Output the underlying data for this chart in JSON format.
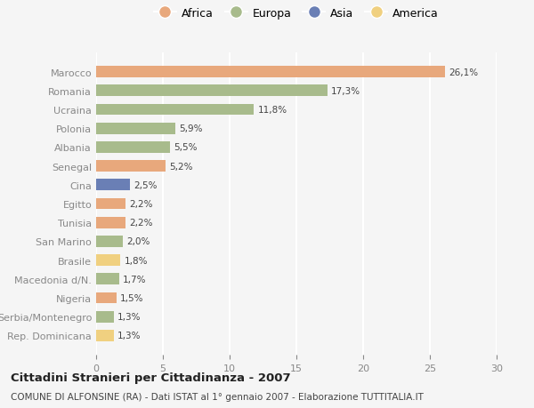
{
  "countries": [
    "Marocco",
    "Romania",
    "Ucraina",
    "Polonia",
    "Albania",
    "Senegal",
    "Cina",
    "Egitto",
    "Tunisia",
    "San Marino",
    "Brasile",
    "Macedonia d/N.",
    "Nigeria",
    "Serbia/Montenegro",
    "Rep. Dominicana"
  ],
  "values": [
    26.1,
    17.3,
    11.8,
    5.9,
    5.5,
    5.2,
    2.5,
    2.2,
    2.2,
    2.0,
    1.8,
    1.7,
    1.5,
    1.3,
    1.3
  ],
  "labels": [
    "26,1%",
    "17,3%",
    "11,8%",
    "5,9%",
    "5,5%",
    "5,2%",
    "2,5%",
    "2,2%",
    "2,2%",
    "2,0%",
    "1,8%",
    "1,7%",
    "1,5%",
    "1,3%",
    "1,3%"
  ],
  "continents": [
    "Africa",
    "Europa",
    "Europa",
    "Europa",
    "Europa",
    "Africa",
    "Asia",
    "Africa",
    "Africa",
    "Europa",
    "America",
    "Europa",
    "Africa",
    "Europa",
    "America"
  ],
  "colors": {
    "Africa": "#E8A87C",
    "Europa": "#A8BB8C",
    "Asia": "#6A7FB5",
    "America": "#F0D080"
  },
  "legend_order": [
    "Africa",
    "Europa",
    "Asia",
    "America"
  ],
  "title": "Cittadini Stranieri per Cittadinanza - 2007",
  "subtitle": "COMUNE DI ALFONSINE (RA) - Dati ISTAT al 1° gennaio 2007 - Elaborazione TUTTITALIA.IT",
  "xlim": [
    0,
    30
  ],
  "xticks": [
    0,
    5,
    10,
    15,
    20,
    25,
    30
  ],
  "background_color": "#f5f5f5",
  "grid_color": "#ffffff",
  "bar_height": 0.6
}
